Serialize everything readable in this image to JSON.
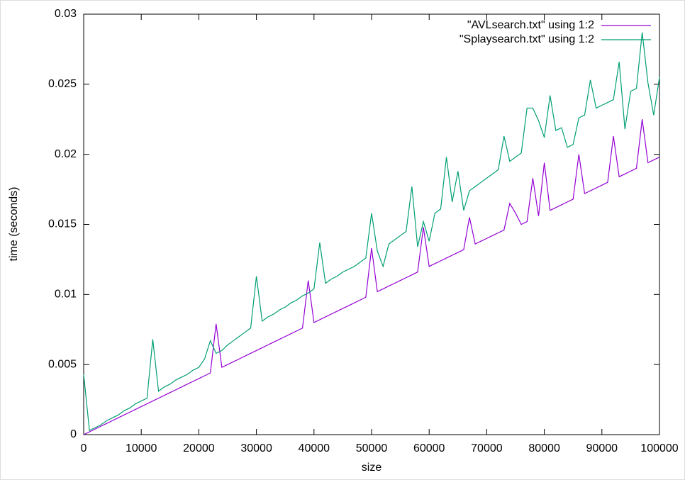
{
  "chart_data": {
    "type": "line",
    "xlabel": "size",
    "ylabel": "time (seconds)",
    "xlim": [
      0,
      100000
    ],
    "ylim": [
      0,
      0.03
    ],
    "xticks": [
      0,
      10000,
      20000,
      30000,
      40000,
      50000,
      60000,
      70000,
      80000,
      90000,
      100000
    ],
    "yticks": [
      0,
      0.005,
      0.01,
      0.015,
      0.02,
      0.025,
      0.03
    ],
    "legend": "top-right",
    "x": [
      0,
      1000,
      2000,
      3000,
      4000,
      5000,
      6000,
      7000,
      8000,
      9000,
      10000,
      11000,
      12000,
      13000,
      14000,
      15000,
      16000,
      17000,
      18000,
      19000,
      20000,
      21000,
      22000,
      23000,
      24000,
      25000,
      26000,
      27000,
      28000,
      29000,
      30000,
      31000,
      32000,
      33000,
      34000,
      35000,
      36000,
      37000,
      38000,
      39000,
      40000,
      41000,
      42000,
      43000,
      44000,
      45000,
      46000,
      47000,
      48000,
      49000,
      50000,
      51000,
      52000,
      53000,
      54000,
      55000,
      56000,
      57000,
      58000,
      59000,
      60000,
      61000,
      62000,
      63000,
      64000,
      65000,
      66000,
      67000,
      68000,
      69000,
      70000,
      71000,
      72000,
      73000,
      74000,
      75000,
      76000,
      77000,
      78000,
      79000,
      80000,
      81000,
      82000,
      83000,
      84000,
      85000,
      86000,
      87000,
      88000,
      89000,
      90000,
      91000,
      92000,
      93000,
      94000,
      95000,
      96000,
      97000,
      98000,
      99000,
      100000
    ],
    "series": [
      {
        "name": "\"AVLsearch.txt\" using 1:2",
        "color": "#9400d3",
        "values": [
          0,
          0.0002,
          0.0004,
          0.0006,
          0.0008,
          0.001,
          0.0012,
          0.0014,
          0.0016,
          0.0018,
          0.002,
          0.0022,
          0.0024,
          0.0026,
          0.0028,
          0.003,
          0.0032,
          0.0034,
          0.0036,
          0.0038,
          0.004,
          0.0042,
          0.0044,
          0.0079,
          0.0048,
          0.005,
          0.0052,
          0.0054,
          0.0056,
          0.0058,
          0.006,
          0.0062,
          0.0064,
          0.0066,
          0.0068,
          0.007,
          0.0072,
          0.0074,
          0.0076,
          0.011,
          0.008,
          0.0082,
          0.0084,
          0.0086,
          0.0088,
          0.009,
          0.0092,
          0.0094,
          0.0096,
          0.0098,
          0.0133,
          0.0102,
          0.0104,
          0.0106,
          0.0108,
          0.011,
          0.0112,
          0.0114,
          0.0116,
          0.0148,
          0.012,
          0.0122,
          0.0124,
          0.0126,
          0.0128,
          0.013,
          0.0132,
          0.0155,
          0.0136,
          0.0138,
          0.014,
          0.0142,
          0.0144,
          0.0146,
          0.0165,
          0.0158,
          0.015,
          0.0152,
          0.0183,
          0.0156,
          0.0194,
          0.016,
          0.0162,
          0.0164,
          0.0166,
          0.0168,
          0.02,
          0.0172,
          0.0174,
          0.0176,
          0.0178,
          0.018,
          0.0213,
          0.0184,
          0.0186,
          0.0188,
          0.019,
          0.0225,
          0.0194,
          0.0196,
          0.0198
        ]
      },
      {
        "name": "\"Splaysearch.txt\" using 1:2",
        "color": "#009e73",
        "values": [
          0.0043,
          0.0003,
          0.0005,
          0.0007,
          0.001,
          0.0012,
          0.0014,
          0.0017,
          0.0019,
          0.0022,
          0.0024,
          0.0026,
          0.0068,
          0.0031,
          0.0034,
          0.0036,
          0.0039,
          0.0041,
          0.0043,
          0.0046,
          0.0048,
          0.0054,
          0.0067,
          0.0058,
          0.006,
          0.0064,
          0.0067,
          0.007,
          0.0073,
          0.0076,
          0.0113,
          0.0081,
          0.0084,
          0.0086,
          0.0089,
          0.0091,
          0.0094,
          0.0096,
          0.0099,
          0.0101,
          0.0104,
          0.0137,
          0.0108,
          0.0111,
          0.0113,
          0.0116,
          0.0118,
          0.012,
          0.0123,
          0.0126,
          0.0158,
          0.0131,
          0.012,
          0.0136,
          0.0139,
          0.0142,
          0.0145,
          0.0177,
          0.0134,
          0.0152,
          0.0138,
          0.0158,
          0.0161,
          0.0198,
          0.0166,
          0.0188,
          0.016,
          0.0174,
          0.0177,
          0.018,
          0.0183,
          0.0186,
          0.0189,
          0.0213,
          0.0195,
          0.0198,
          0.0201,
          0.0233,
          0.0233,
          0.0224,
          0.0212,
          0.0242,
          0.0217,
          0.0219,
          0.0205,
          0.0207,
          0.0226,
          0.0228,
          0.0253,
          0.0233,
          0.0235,
          0.0237,
          0.0239,
          0.0266,
          0.0218,
          0.0245,
          0.0247,
          0.0287,
          0.0251,
          0.0228,
          0.0255
        ]
      }
    ]
  }
}
